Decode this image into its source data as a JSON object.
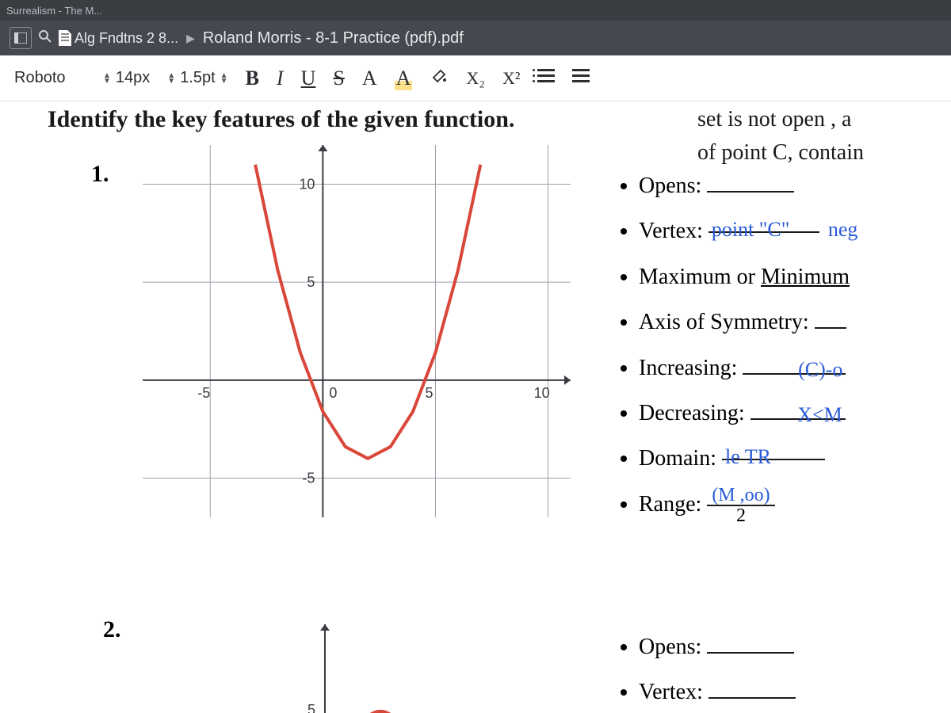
{
  "tabstrip": {
    "tab1": "Surrealism - The M..."
  },
  "breadcrumb": {
    "item1": "Alg Fndtns 2 8...",
    "title": "Roland Morris - 8-1 Practice (pdf).pdf"
  },
  "toolbar": {
    "font_family": "Roboto",
    "font_size": "14px",
    "line_height": "1.5pt",
    "bold": "B",
    "italic": "I",
    "underline": "U",
    "strike": "S",
    "textcolor": "A",
    "highlight": "A",
    "paint": "⬭",
    "sub": "X₂",
    "sup": "X²"
  },
  "doc": {
    "heading": "Identify the key features of the given function.",
    "sidenote_line1": "set is not open , a",
    "sidenote_line2": "of point C, contain",
    "q1": {
      "num": "1.",
      "opens_label": "Opens:",
      "vertex_label": "Vertex:",
      "vertex_ans": "point \"C\"",
      "vertex_ans2": "neg",
      "maxmin_label": "Maximum or ",
      "maxmin_ans": "Minimum",
      "aos_label": "Axis of Symmetry:",
      "inc_label": "Increasing:",
      "inc_ans": "(C)-o",
      "dec_label": "Decreasing:",
      "dec_ans": "X<M",
      "dom_label": "Domain:",
      "dom_ans": "le TR",
      "range_label": "Range:",
      "range_ans_top": "(M ,oo)",
      "range_ans_bot": "2"
    },
    "q2": {
      "num": "2.",
      "opens_label": "Opens:",
      "vertex_label": "Vertex:"
    }
  },
  "graph1": {
    "type": "parabola",
    "curve_color": "#d9473a",
    "grid_color": "#9aa0a8",
    "axis_color": "#3a3d42",
    "background": "#ffffff",
    "xlim": [
      -8,
      11
    ],
    "ylim": [
      -7,
      12
    ],
    "xticks": [
      -5,
      0,
      5,
      10
    ],
    "yticks": [
      -5,
      0,
      5,
      10
    ],
    "xtick_labels": [
      "-5",
      "0",
      "5",
      "10"
    ],
    "ytick_labels": [
      "-5",
      "",
      "5",
      "10"
    ],
    "vertex": [
      2,
      -4
    ],
    "a": 0.6,
    "points": [
      [
        -3,
        11
      ],
      [
        -2,
        5.6
      ],
      [
        -1,
        1.4
      ],
      [
        0,
        -1.6
      ],
      [
        1,
        -3.4
      ],
      [
        2,
        -4
      ],
      [
        3,
        -3.4
      ],
      [
        4,
        -1.6
      ],
      [
        5,
        1.4
      ],
      [
        6,
        5.6
      ],
      [
        7,
        11
      ]
    ],
    "line_width": 4
  },
  "graph2": {
    "type": "parabola-partial",
    "curve_color": "#d9473a",
    "grid_color": "#9aa0a8",
    "axis_color": "#3a3d42",
    "ytick_label": "5"
  }
}
